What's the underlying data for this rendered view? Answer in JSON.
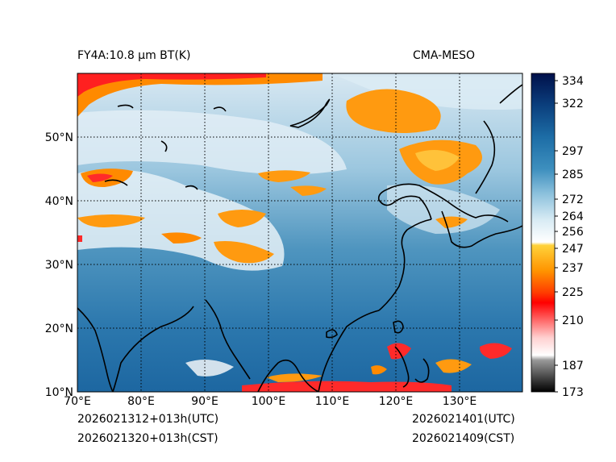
{
  "header": {
    "left_title": "FY4A:10.8 µm BT(K)",
    "right_title": "CMA-MESO"
  },
  "map": {
    "lat_labels": [
      "10°N",
      "20°N",
      "30°N",
      "40°N",
      "50°N"
    ],
    "lon_labels": [
      "70°E",
      "80°E",
      "90°E",
      "100°E",
      "110°E",
      "120°E",
      "130°E"
    ]
  },
  "colorbar": {
    "ticks": [
      "334",
      "322",
      "297",
      "285",
      "272",
      "264",
      "256",
      "247",
      "237",
      "225",
      "210",
      "187",
      "173"
    ]
  },
  "footer": {
    "init_utc": "2026021312+013h(UTC)",
    "init_cst": "2026021320+013h(CST)",
    "valid_utc": "2026021401(UTC)",
    "valid_cst": "2026021409(CST)"
  }
}
